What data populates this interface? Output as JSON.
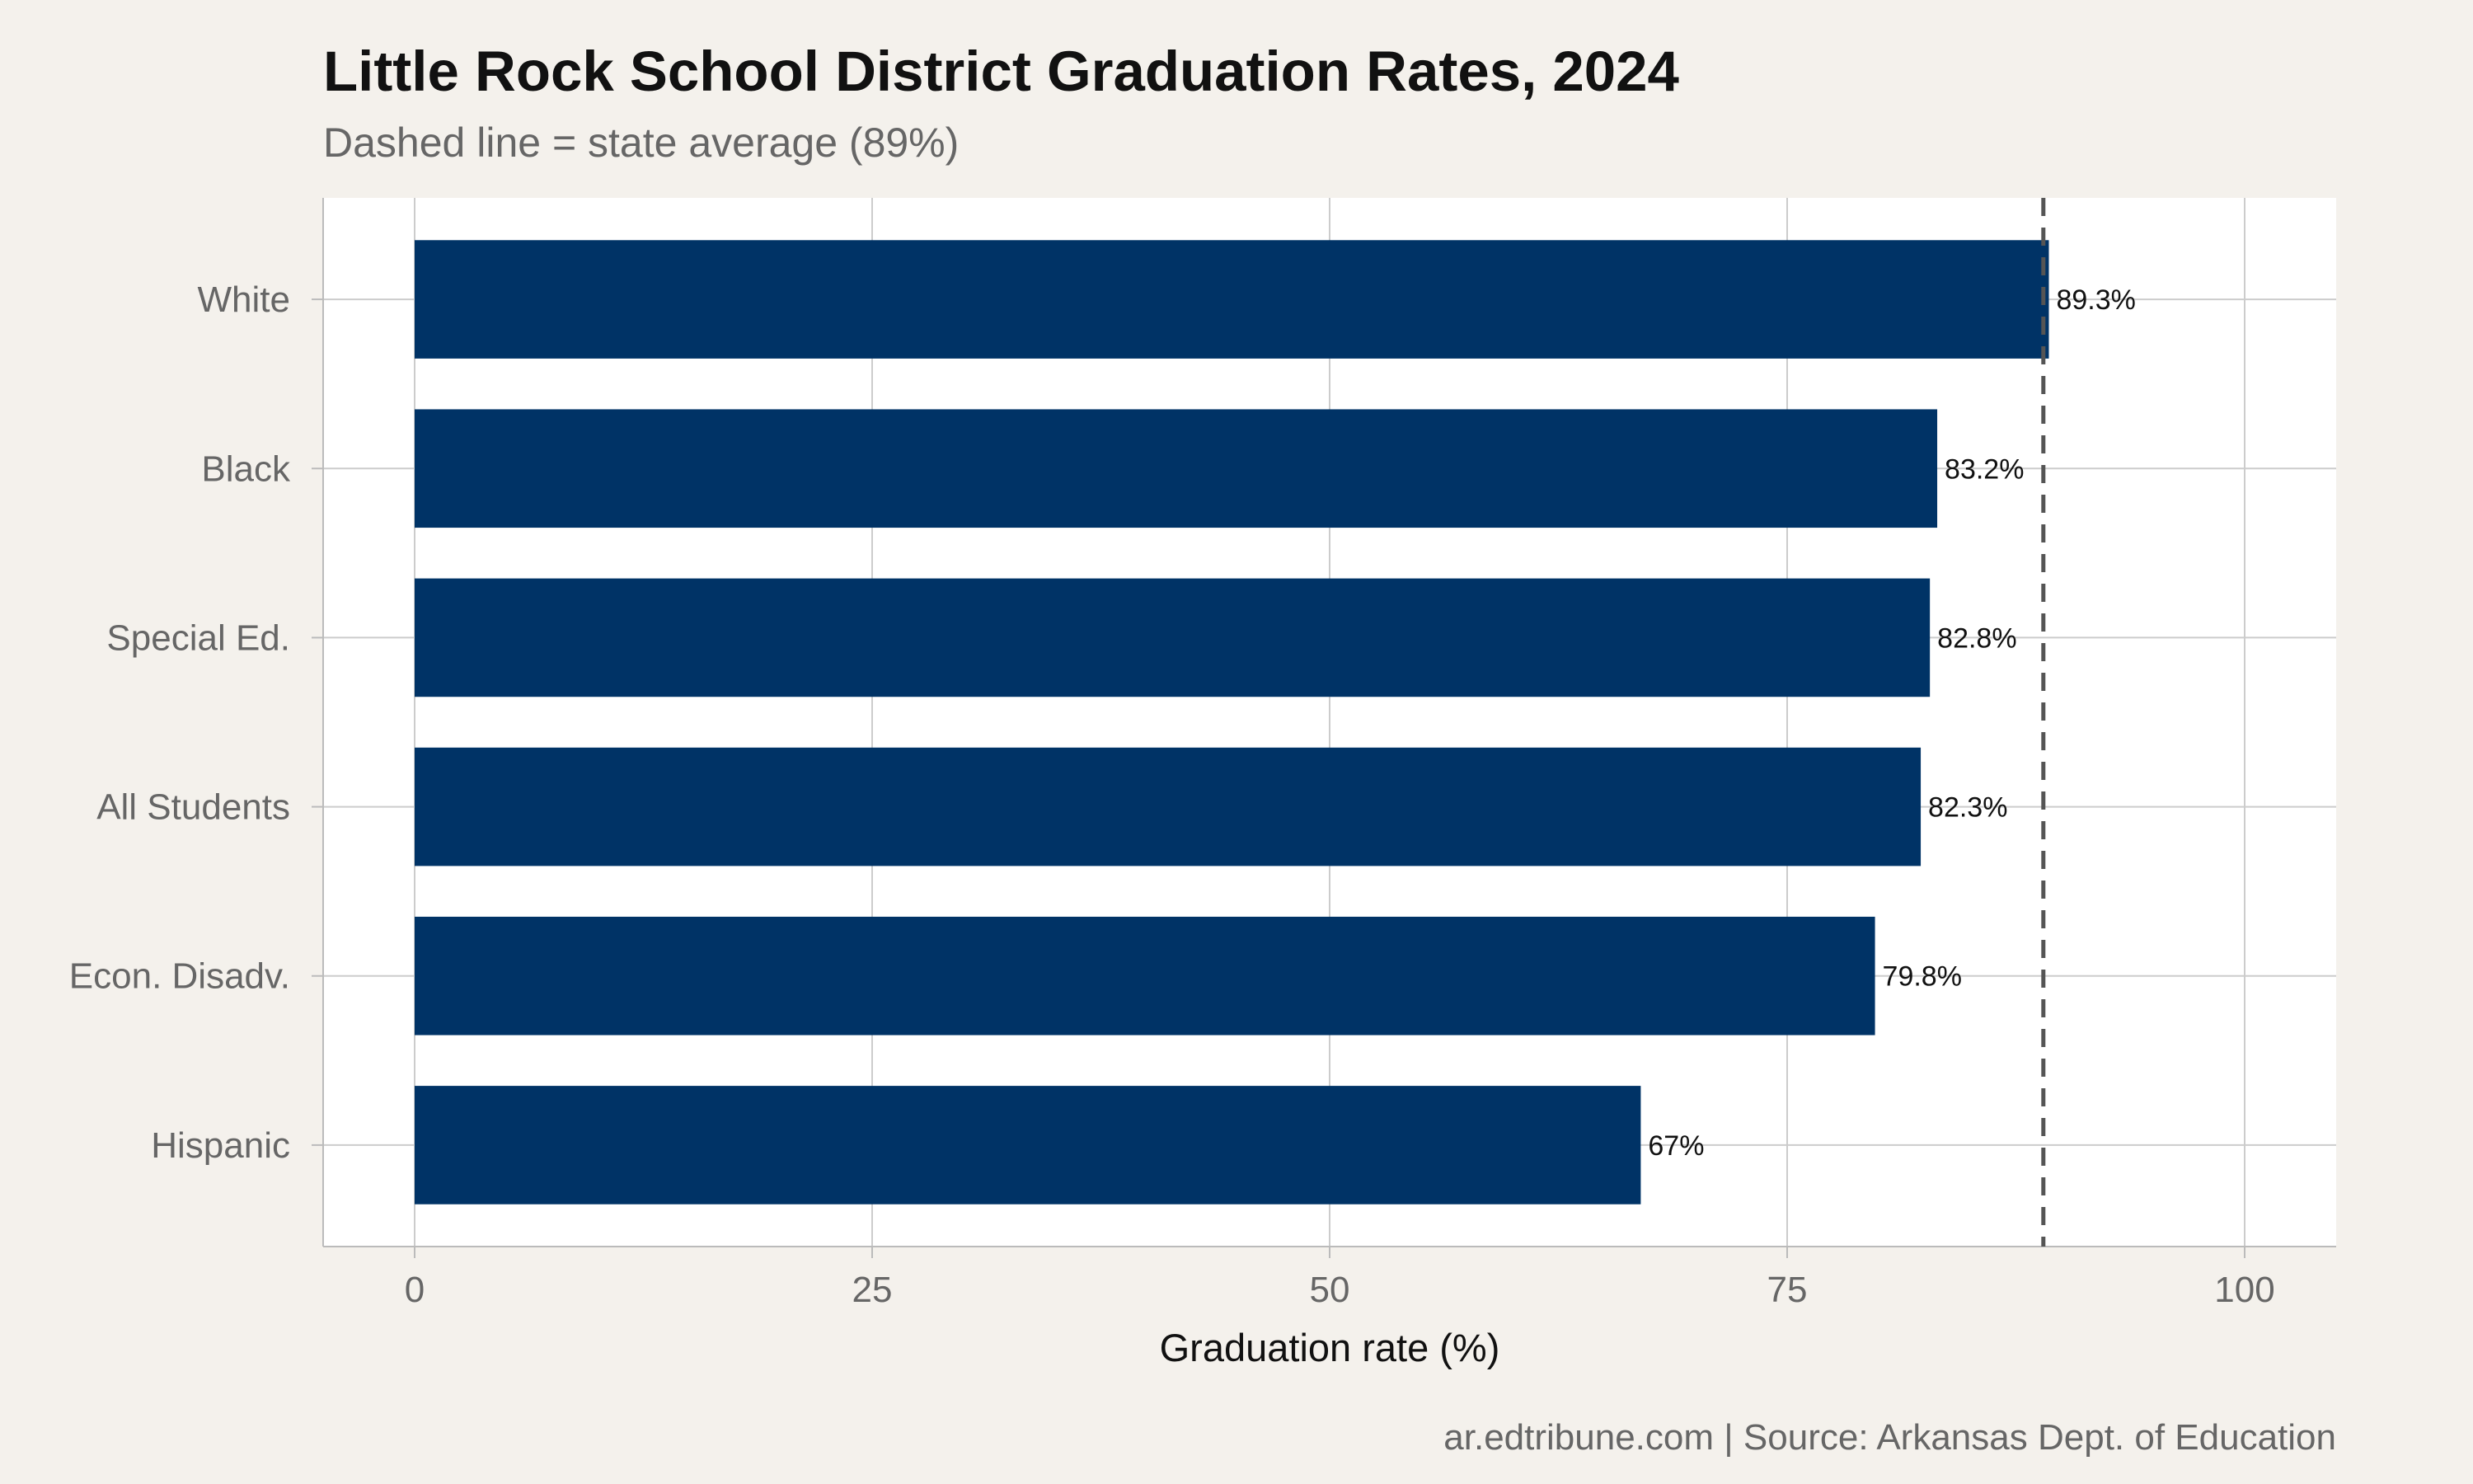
{
  "chart_data": {
    "type": "bar",
    "orientation": "horizontal",
    "title": "Little Rock School District Graduation Rates, 2024",
    "subtitle": "Dashed line = state average (89%)",
    "caption": "ar.edtribune.com | Source: Arkansas Dept. of Education",
    "xlabel": "Graduation rate (%)",
    "ylabel": "",
    "categories": [
      "White",
      "Black",
      "Special Ed.",
      "All Students",
      "Econ. Disadv.",
      "Hispanic"
    ],
    "values": [
      89.3,
      83.2,
      82.8,
      82.3,
      79.8,
      67
    ],
    "value_labels": [
      "89.3%",
      "83.2%",
      "82.8%",
      "82.3%",
      "79.8%",
      "67%"
    ],
    "xlim": [
      -5,
      105
    ],
    "xticks": [
      0,
      25,
      50,
      75,
      100
    ],
    "xtick_labels": [
      "0",
      "25",
      "50",
      "75",
      "100"
    ],
    "reference_line": {
      "value": 89,
      "style": "dashed"
    },
    "grid": true,
    "colors": {
      "bar": "#003366",
      "background": "#f4f1ec",
      "panel": "#ffffff",
      "grid": "#cccccc",
      "reference_line": "#555555"
    }
  }
}
